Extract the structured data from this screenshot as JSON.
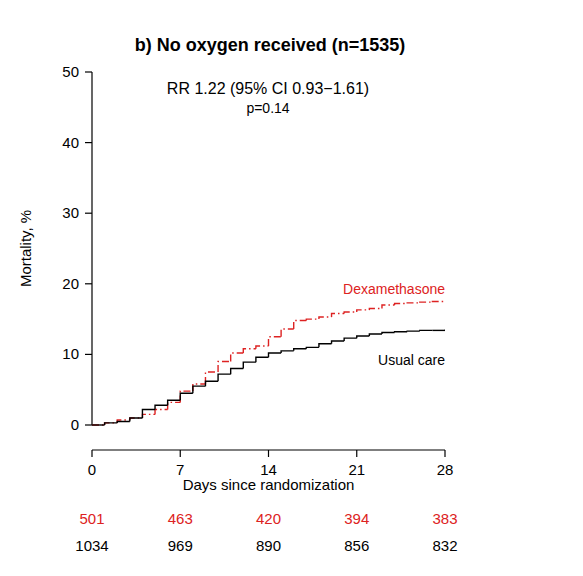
{
  "chart_data": {
    "type": "step",
    "title": "b) No oxygen received (n=1535)",
    "annotations": [
      "RR 1.22 (95% CI 0.93−1.61)",
      "p=0.14"
    ],
    "x_label": "Days since randomization",
    "y_label": "Mortality, %",
    "x": [
      0,
      1,
      2,
      3,
      4,
      5,
      6,
      7,
      8,
      9,
      10,
      11,
      12,
      13,
      14,
      15,
      16,
      17,
      18,
      19,
      20,
      21,
      22,
      23,
      24,
      25,
      26,
      27,
      28
    ],
    "series": [
      {
        "name": "Dexamethasone",
        "color": "#dd2222",
        "line_style": "dashdot",
        "values": [
          0,
          0.3,
          0.7,
          1.0,
          1.5,
          2.2,
          3.2,
          4.8,
          5.8,
          7.5,
          9.0,
          10.2,
          10.8,
          11.2,
          12.5,
          13.6,
          14.8,
          15.0,
          15.3,
          15.8,
          16.0,
          16.3,
          16.5,
          17.0,
          17.2,
          17.3,
          17.4,
          17.5,
          17.5
        ],
        "at_risk_x": [
          0,
          7,
          14,
          21,
          28
        ],
        "at_risk": [
          501,
          463,
          420,
          394,
          383
        ]
      },
      {
        "name": "Usual care",
        "color": "#000000",
        "line_style": "solid",
        "values": [
          0,
          0.3,
          0.5,
          1.0,
          2.2,
          2.8,
          3.5,
          4.5,
          5.5,
          6.2,
          7.2,
          8.0,
          8.9,
          9.6,
          10.2,
          10.5,
          10.8,
          11.0,
          11.5,
          11.9,
          12.3,
          12.6,
          12.9,
          13.1,
          13.2,
          13.3,
          13.4,
          13.4,
          13.5
        ],
        "at_risk_x": [
          0,
          7,
          14,
          21,
          28
        ],
        "at_risk": [
          1034,
          969,
          890,
          856,
          832
        ]
      }
    ],
    "xlim": [
      0,
      28
    ],
    "xticks": [
      0,
      7,
      14,
      21,
      28
    ],
    "ylim": [
      0,
      50
    ],
    "yticks": [
      0,
      10,
      20,
      30,
      40,
      50
    ],
    "grid": false
  }
}
